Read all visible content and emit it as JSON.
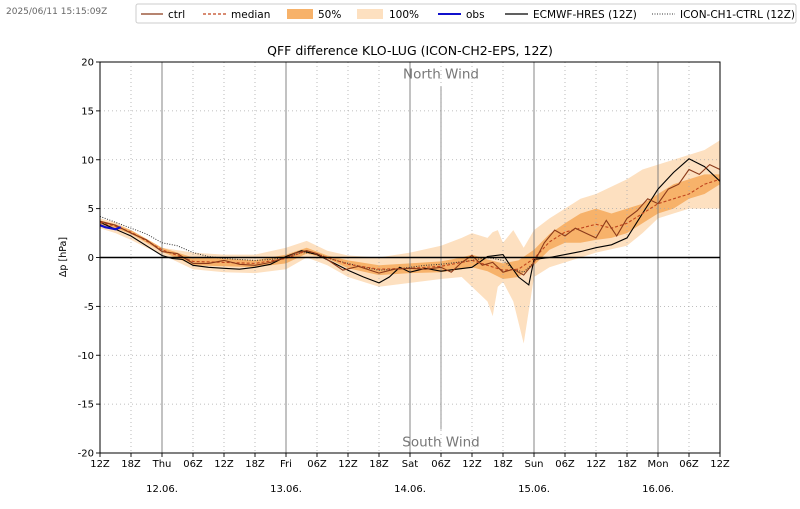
{
  "timestamp": "2025/06/11 15:15:09Z",
  "chart_data": {
    "type": "line",
    "title": "QFF difference KLO-LUG (ICON-CH2-EPS, 12Z)",
    "ylabel": "Δp [hPa]",
    "xlabel": "",
    "ylim": [
      -20,
      20
    ],
    "xlim_hours": [
      0,
      120
    ],
    "yticks": [
      -20,
      -15,
      -10,
      -5,
      0,
      5,
      10,
      15,
      20
    ],
    "grid": true,
    "legend_position": "top",
    "annotations": [
      {
        "text": "North Wind",
        "x": 66,
        "y": 18.8
      },
      {
        "text": "South Wind",
        "x": 66,
        "y": -18.8
      }
    ],
    "xticks": [
      {
        "h": 0,
        "label": "12Z"
      },
      {
        "h": 6,
        "label": "18Z"
      },
      {
        "h": 12,
        "label": "Thu",
        "date": "12.06."
      },
      {
        "h": 18,
        "label": "06Z"
      },
      {
        "h": 24,
        "label": "12Z"
      },
      {
        "h": 30,
        "label": "18Z"
      },
      {
        "h": 36,
        "label": "Fri",
        "date": "13.06."
      },
      {
        "h": 42,
        "label": "06Z"
      },
      {
        "h": 48,
        "label": "12Z"
      },
      {
        "h": 54,
        "label": "18Z"
      },
      {
        "h": 60,
        "label": "Sat",
        "date": "14.06."
      },
      {
        "h": 66,
        "label": "06Z"
      },
      {
        "h": 72,
        "label": "12Z"
      },
      {
        "h": 78,
        "label": "18Z"
      },
      {
        "h": 84,
        "label": "Sun",
        "date": "15.06."
      },
      {
        "h": 90,
        "label": "06Z"
      },
      {
        "h": 96,
        "label": "12Z"
      },
      {
        "h": 102,
        "label": "18Z"
      },
      {
        "h": 108,
        "label": "Mon",
        "date": "16.06."
      },
      {
        "h": 114,
        "label": "06Z"
      },
      {
        "h": 120,
        "label": "12Z"
      }
    ],
    "legend": [
      {
        "key": "ctrl",
        "label": "ctrl"
      },
      {
        "key": "median",
        "label": "median"
      },
      {
        "key": "p50",
        "label": "50%"
      },
      {
        "key": "p100",
        "label": "100%"
      },
      {
        "key": "obs",
        "label": "obs"
      },
      {
        "key": "ecmwf",
        "label": "ECMWF-HRES (12Z)"
      },
      {
        "key": "ich1",
        "label": "ICON-CH1-CTRL (12Z)"
      }
    ],
    "colors": {
      "ctrl": "#8b3a1a",
      "median": "#c0461f",
      "p50": "#f7b26a",
      "p100": "#fde0c0",
      "obs": "#1010cc",
      "ecmwf": "#000000",
      "ich1": "#333333",
      "zero": "#000000"
    },
    "series": [
      {
        "name": "band100",
        "x": [
          0,
          3,
          6,
          9,
          12,
          18,
          24,
          30,
          36,
          40,
          44,
          48,
          54,
          60,
          66,
          70,
          72,
          75,
          76,
          77,
          78,
          80,
          82,
          84,
          87,
          90,
          93,
          96,
          102,
          105,
          108,
          111,
          114,
          117,
          120
        ],
        "lower": [
          3,
          2.5,
          1.8,
          1.0,
          0.3,
          -1.2,
          -1.5,
          -1.6,
          -1.2,
          0,
          -0.8,
          -2.0,
          -3.0,
          -2.6,
          -2.2,
          -2.0,
          -3.0,
          -4.5,
          -6,
          -3,
          -2.5,
          -4.5,
          -8.8,
          -2,
          -1,
          -0.5,
          0,
          0.5,
          1.2,
          2.5,
          4,
          4.5,
          5,
          5,
          5
        ],
        "upper": [
          4,
          3.6,
          2.8,
          1.9,
          1.0,
          0.5,
          0.3,
          0.3,
          1.0,
          1.7,
          0.7,
          0.2,
          0,
          0.5,
          1.2,
          2,
          2.5,
          2.0,
          2.6,
          2.8,
          1.5,
          2.8,
          1,
          2.8,
          4,
          5,
          6,
          6.5,
          8,
          9,
          9.5,
          10,
          10.5,
          11,
          12
        ]
      },
      {
        "name": "band50",
        "x": [
          0,
          3,
          6,
          9,
          12,
          18,
          24,
          30,
          36,
          40,
          44,
          48,
          54,
          60,
          66,
          70,
          72,
          75,
          78,
          81,
          84,
          87,
          90,
          93,
          96,
          99,
          102,
          105,
          108,
          111,
          114,
          117,
          120
        ],
        "lower": [
          3.2,
          3.0,
          2.4,
          1.5,
          0.6,
          -0.8,
          -0.9,
          -1.0,
          -0.6,
          0.4,
          -0.1,
          -1.1,
          -1.8,
          -1.6,
          -1.5,
          -1.2,
          -1.0,
          -1.4,
          -2.2,
          -2.0,
          -0.8,
          0.8,
          1.5,
          1.5,
          1.8,
          2.0,
          2.5,
          3.5,
          4.5,
          5.0,
          6.0,
          6.5,
          7.5
        ],
        "upper": [
          3.8,
          3.4,
          2.8,
          1.9,
          1.0,
          0.0,
          -0.1,
          -0.3,
          0.3,
          1.0,
          0.2,
          -0.3,
          -0.8,
          -0.6,
          -0.4,
          0.0,
          0.3,
          -0.2,
          -0.6,
          -0.3,
          0.8,
          2.4,
          3.5,
          4.5,
          5.0,
          4.5,
          5.0,
          5.5,
          6.5,
          7.5,
          8.0,
          8.5,
          8.5
        ]
      },
      {
        "name": "median",
        "x": [
          0,
          3,
          6,
          9,
          12,
          18,
          24,
          30,
          36,
          40,
          44,
          48,
          54,
          60,
          66,
          70,
          72,
          75,
          78,
          81,
          84,
          87,
          90,
          93,
          96,
          99,
          102,
          105,
          108,
          111,
          114,
          117,
          120
        ],
        "y": [
          3.6,
          3.2,
          2.6,
          1.7,
          0.8,
          -0.4,
          -0.5,
          -0.6,
          -0.1,
          0.7,
          0.0,
          -0.7,
          -1.2,
          -1.1,
          -0.9,
          -0.5,
          -0.3,
          -0.8,
          -1.3,
          -1.2,
          -0.1,
          1.6,
          2.6,
          3.0,
          3.4,
          3.0,
          3.5,
          4.5,
          5.5,
          6.0,
          6.5,
          7.5,
          8.0
        ]
      },
      {
        "name": "ctrl",
        "x": [
          0,
          3,
          6,
          9,
          12,
          15,
          18,
          21,
          24,
          27,
          30,
          33,
          36,
          38,
          40,
          42,
          44,
          47,
          50,
          54,
          57,
          60,
          63,
          66,
          68,
          70,
          72,
          74,
          76,
          78,
          80,
          82,
          84,
          86,
          88,
          90,
          92,
          94,
          96,
          98,
          100,
          102,
          104,
          106,
          108,
          110,
          112,
          114,
          116,
          118,
          120
        ],
        "y": [
          3.7,
          3.3,
          2.5,
          1.8,
          0.6,
          0.4,
          -0.6,
          -0.6,
          -0.3,
          -0.7,
          -0.8,
          -0.5,
          0.0,
          0.5,
          0.7,
          0.4,
          -0.2,
          -1.3,
          -0.9,
          -1.6,
          -1.2,
          -1.1,
          -1.2,
          -1.0,
          -1.5,
          -0.5,
          0.2,
          -0.8,
          -0.5,
          -1.5,
          -1.2,
          -1.8,
          -0.5,
          1.5,
          2.8,
          2.2,
          3.0,
          2.5,
          2.0,
          3.8,
          2.2,
          4.0,
          4.8,
          6.0,
          5.5,
          7.0,
          7.5,
          9.0,
          8.5,
          9.5,
          9.0
        ]
      },
      {
        "name": "ecmwf",
        "x": [
          0,
          3,
          6,
          9,
          12,
          14,
          16,
          18,
          21,
          24,
          27,
          30,
          33,
          36,
          39,
          42,
          45,
          48,
          51,
          54,
          56,
          58,
          60,
          63,
          66,
          69,
          72,
          75,
          78,
          79,
          81,
          83,
          84,
          87,
          90,
          93,
          96,
          99,
          102,
          105,
          108,
          111,
          114,
          117,
          120
        ],
        "y": [
          3.6,
          2.9,
          2.2,
          1.2,
          0.2,
          -0.1,
          -0.2,
          -0.8,
          -1.0,
          -1.1,
          -1.2,
          -1.0,
          -0.7,
          0.1,
          0.7,
          0.3,
          -0.5,
          -1.3,
          -2.0,
          -2.6,
          -2.0,
          -1.0,
          -1.5,
          -1.1,
          -1.4,
          -1.2,
          -1.0,
          0.1,
          0.3,
          -0.5,
          -2.0,
          -2.8,
          -0.2,
          0.0,
          0.3,
          0.6,
          1.0,
          1.3,
          2.0,
          4.5,
          7.0,
          8.7,
          10.1,
          9.3,
          7.8
        ]
      },
      {
        "name": "ich1",
        "x": [
          0,
          3,
          6,
          9,
          12,
          15,
          18,
          21,
          24,
          27,
          30,
          33,
          36,
          39,
          42,
          45,
          48,
          51,
          54,
          57,
          60,
          63,
          66,
          69,
          72,
          75,
          78,
          80,
          82,
          84
        ],
        "y": [
          4.2,
          3.6,
          3.0,
          2.4,
          1.5,
          1.2,
          0.5,
          0.1,
          -0.1,
          -0.2,
          -0.3,
          -0.2,
          0.0,
          0.5,
          0.4,
          -0.2,
          -0.6,
          -1.0,
          -1.3,
          -1.2,
          -1.0,
          -0.8,
          -0.7,
          -0.5,
          -0.3,
          0.0,
          -0.3,
          -1.2,
          -1.5,
          -0.5
        ]
      },
      {
        "name": "obs",
        "x": [
          0,
          1,
          2,
          3,
          4
        ],
        "y": [
          3.3,
          3.1,
          3.0,
          2.9,
          3.1
        ]
      }
    ]
  }
}
